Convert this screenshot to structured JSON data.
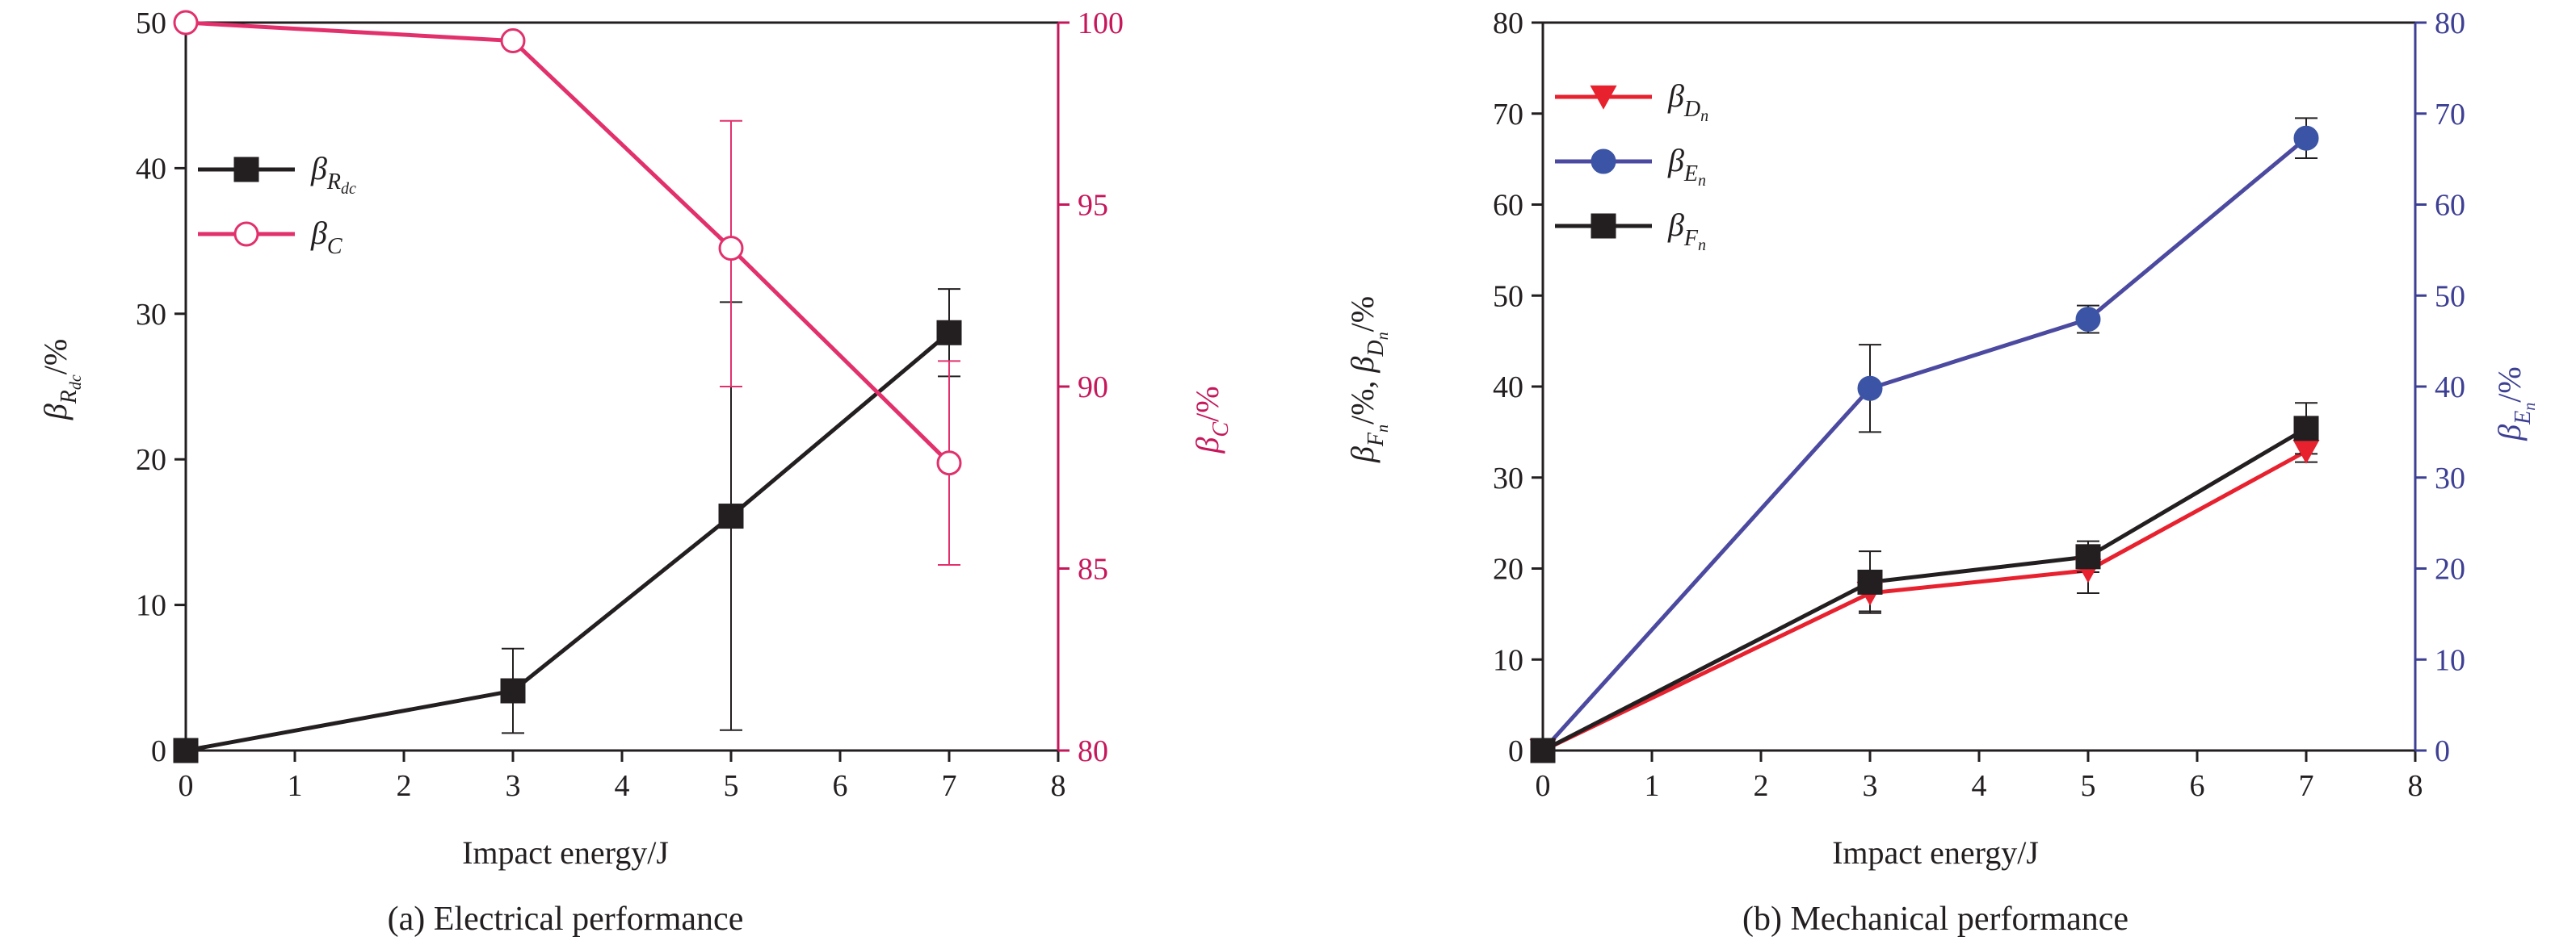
{
  "chart_data": [
    {
      "type": "line",
      "caption": "(a) Electrical performance",
      "xlabel": "Impact energy/J",
      "xlim": [
        0,
        8
      ],
      "xticks": [
        0,
        1,
        2,
        3,
        4,
        5,
        6,
        7,
        8
      ],
      "y_left": {
        "label_symbol": "β",
        "label_sub": "R",
        "label_subsub": "dc",
        "label_unit": "/%",
        "ylim": [
          0,
          50
        ],
        "ticks": [
          0,
          10,
          20,
          30,
          40,
          50
        ],
        "color": "#231f20"
      },
      "y_right": {
        "label_symbol": "β",
        "label_sub": "C",
        "label_unit": "/%",
        "ylim": [
          80,
          100
        ],
        "ticks": [
          80,
          85,
          90,
          95,
          100
        ],
        "color": "#c6175b"
      },
      "legend_position": "upper-left",
      "series": [
        {
          "name": "β",
          "name_sub": "R",
          "name_subsub": "dc",
          "axis": "left",
          "marker": "square",
          "filled": true,
          "color": "#231f20",
          "line_color": "#231f20",
          "x": [
            0,
            3,
            5,
            7
          ],
          "y": [
            0,
            4.1,
            16.1,
            28.7
          ],
          "err": [
            0.5,
            2.9,
            14.7,
            3.0
          ]
        },
        {
          "name": "β",
          "name_sub": "C",
          "axis": "right",
          "marker": "circle",
          "filled": false,
          "color": "#e2306d",
          "line_color": "#e2306d",
          "x": [
            0,
            3,
            7
          ],
          "y": [
            100,
            99.5,
            87.9
          ],
          "err": [
            0,
            0,
            2.8
          ]
        },
        {
          "name": "",
          "axis": "right",
          "marker": "circle",
          "filled": false,
          "color": "#e2306d",
          "line_color": "#e2306d",
          "x": [
            5
          ],
          "y": [
            93.8
          ],
          "err": [
            3.5
          ],
          "err_low": [
            3.8
          ]
        }
      ]
    },
    {
      "type": "line",
      "caption": "(b) Mechanical performance",
      "xlabel": "Impact energy/J",
      "xlim": [
        0,
        8
      ],
      "xticks": [
        0,
        1,
        2,
        3,
        4,
        5,
        6,
        7,
        8
      ],
      "y_left": {
        "label_parts": [
          "β",
          "F",
          "n",
          "/%, ",
          "β",
          "D",
          "n",
          "/%"
        ],
        "ylim": [
          0,
          80
        ],
        "ticks": [
          0,
          10,
          20,
          30,
          40,
          50,
          60,
          70,
          80
        ],
        "color": "#231f20"
      },
      "y_right": {
        "label_symbol": "β",
        "label_sub": "E",
        "label_subsub": "n",
        "label_unit": "/%",
        "ylim": [
          0,
          80
        ],
        "ticks": [
          0,
          10,
          20,
          30,
          40,
          50,
          60,
          70,
          80
        ],
        "color": "#3d3f94"
      },
      "legend_position": "upper-left",
      "series": [
        {
          "name": "β",
          "name_sub": "D",
          "name_subsub": "n",
          "axis": "left",
          "marker": "triangle-down",
          "filled": true,
          "color": "#e8212f",
          "line_color": "#e8212f",
          "x": [
            0,
            3,
            5,
            7
          ],
          "y": [
            0,
            17.3,
            19.8,
            32.9
          ],
          "err": [
            0,
            2.0,
            2.5,
            1.2
          ]
        },
        {
          "name": "β",
          "name_sub": "E",
          "name_subsub": "n",
          "axis": "right",
          "marker": "circle",
          "filled": true,
          "color": "#3b54a5",
          "line_color": "#4b4aa0",
          "x": [
            0,
            3,
            5,
            7
          ],
          "y": [
            0,
            39.8,
            47.4,
            67.3
          ],
          "err": [
            0,
            4.8,
            1.5,
            2.2
          ]
        },
        {
          "name": "β",
          "name_sub": "F",
          "name_subsub": "n",
          "axis": "left",
          "marker": "square",
          "filled": true,
          "color": "#231f20",
          "line_color": "#231f20",
          "x": [
            0,
            3,
            5,
            7
          ],
          "y": [
            0,
            18.5,
            21.3,
            35.4
          ],
          "err": [
            0,
            3.4,
            1.7,
            2.8
          ]
        }
      ]
    }
  ]
}
